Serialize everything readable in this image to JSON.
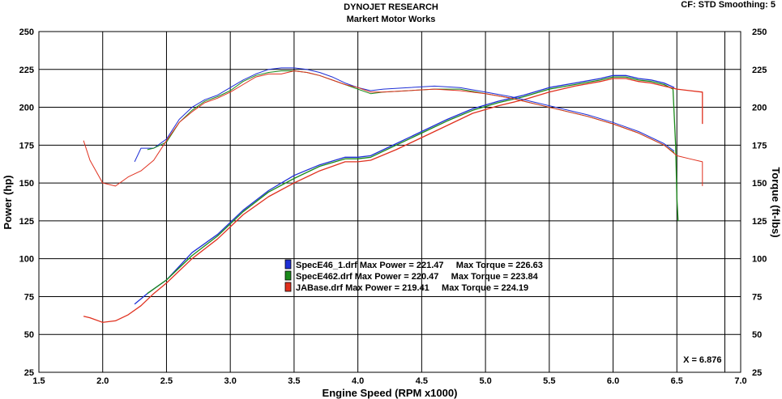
{
  "header": {
    "title": "DYNOJET RESEARCH",
    "subtitle": "Markert Motor Works",
    "cf_info": "CF: STD  Smoothing: 5"
  },
  "cursor": {
    "x_readout": "X = 6.876",
    "x_value": 6.876
  },
  "chart_data": {
    "type": "line",
    "xlabel": "Engine Speed (RPM x1000)",
    "ylabel": "Power (hp)",
    "y2label": "Torque (ft-lbs)",
    "xlim": [
      1.5,
      7.0
    ],
    "ylim": [
      25,
      250
    ],
    "y2lim": [
      25,
      250
    ],
    "xticks": [
      "1.5",
      "2.0",
      "2.5",
      "3.0",
      "3.5",
      "4.0",
      "4.5",
      "5.0",
      "5.5",
      "6.0",
      "6.5",
      "7.0"
    ],
    "yticks": [
      "25",
      "50",
      "75",
      "100",
      "125",
      "150",
      "175",
      "200",
      "225",
      "250"
    ],
    "grid": true,
    "legend": [
      {
        "text": "SpecE46_1.drf Max Power = 221.47     Max Torque = 226.63",
        "color": "#1e2fd6"
      },
      {
        "text": "SpecE462.drf Max Power = 220.47     Max Torque = 223.84",
        "color": "#1a8a1a"
      },
      {
        "text": "JABase.drf Max Power = 219.41     Max Torque = 224.19",
        "color": "#e0301e"
      }
    ],
    "series": [
      {
        "name": "SpecE46_1.drf",
        "measure": "power",
        "color": "#1e2fd6",
        "x": [
          2.25,
          2.35,
          2.5,
          2.7,
          2.9,
          3.1,
          3.3,
          3.5,
          3.7,
          3.9,
          4.0,
          4.1,
          4.3,
          4.5,
          4.7,
          4.9,
          5.1,
          5.3,
          5.5,
          5.7,
          5.9,
          6.0,
          6.1,
          6.2,
          6.3,
          6.4,
          6.48
        ],
        "y": [
          70,
          77,
          86,
          104,
          116,
          132,
          145,
          155,
          162,
          167,
          167,
          168,
          176,
          184,
          192,
          199,
          204,
          208,
          213,
          216,
          219,
          221,
          221,
          219,
          218,
          216,
          213
        ]
      },
      {
        "name": "SpecE462.drf",
        "measure": "power",
        "color": "#1a8a1a",
        "x": [
          2.35,
          2.5,
          2.7,
          2.9,
          3.1,
          3.3,
          3.5,
          3.7,
          3.9,
          4.0,
          4.1,
          4.3,
          4.5,
          4.7,
          4.9,
          5.1,
          5.3,
          5.5,
          5.7,
          5.9,
          6.0,
          6.1,
          6.2,
          6.3,
          6.4,
          6.47,
          6.49,
          6.5,
          6.51
        ],
        "y": [
          77,
          86,
          102,
          115,
          131,
          144,
          153,
          161,
          166,
          166,
          167,
          175,
          183,
          191,
          198,
          203,
          207,
          212,
          215,
          218,
          220,
          220,
          218,
          217,
          215,
          212,
          175,
          140,
          125
        ]
      },
      {
        "name": "JABase.drf",
        "measure": "power",
        "color": "#e0301e",
        "x": [
          1.85,
          1.9,
          2.0,
          2.1,
          2.2,
          2.3,
          2.4,
          2.5,
          2.7,
          2.9,
          3.1,
          3.3,
          3.5,
          3.7,
          3.9,
          4.0,
          4.1,
          4.3,
          4.5,
          4.7,
          4.9,
          5.1,
          5.3,
          5.5,
          5.7,
          5.9,
          6.0,
          6.1,
          6.2,
          6.3,
          6.4,
          6.5,
          6.6,
          6.7,
          6.7
        ],
        "y": [
          62,
          61,
          58,
          59,
          63,
          69,
          77,
          84,
          100,
          113,
          129,
          141,
          150,
          158,
          164,
          164,
          165,
          172,
          180,
          188,
          196,
          201,
          205,
          210,
          214,
          217,
          219,
          219,
          217,
          216,
          214,
          212,
          211,
          210,
          189
        ]
      },
      {
        "name": "SpecE46_1.drf",
        "measure": "torque",
        "color": "#1e2fd6",
        "x": [
          2.25,
          2.3,
          2.4,
          2.5,
          2.6,
          2.7,
          2.8,
          2.9,
          3.0,
          3.1,
          3.2,
          3.3,
          3.4,
          3.5,
          3.6,
          3.7,
          3.8,
          3.9,
          4.0,
          4.1,
          4.2,
          4.4,
          4.6,
          4.8,
          5.0,
          5.2,
          5.4,
          5.6,
          5.8,
          6.0,
          6.2,
          6.4,
          6.48
        ],
        "y": [
          164,
          173,
          173,
          179,
          192,
          200,
          205,
          208,
          213,
          218,
          222,
          225,
          226,
          226,
          225,
          223,
          220,
          216,
          213,
          211,
          212,
          213,
          214,
          213,
          210,
          207,
          203,
          199,
          195,
          190,
          184,
          176,
          171
        ]
      },
      {
        "name": "SpecE462.drf",
        "measure": "torque",
        "color": "#1a8a1a",
        "x": [
          2.35,
          2.4,
          2.5,
          2.6,
          2.7,
          2.8,
          2.9,
          3.0,
          3.1,
          3.2,
          3.3,
          3.4,
          3.5,
          3.6,
          3.7,
          3.8,
          3.9,
          4.0,
          4.1,
          4.2,
          4.4,
          4.6,
          4.8,
          5.0,
          5.2,
          5.4,
          5.6,
          5.8,
          6.0,
          6.2,
          6.4,
          6.48
        ],
        "y": [
          172,
          173,
          177,
          190,
          198,
          204,
          207,
          211,
          217,
          221,
          223,
          224,
          224,
          223,
          221,
          218,
          215,
          212,
          209,
          210,
          211,
          212,
          212,
          209,
          206,
          202,
          198,
          194,
          189,
          183,
          175,
          170
        ]
      },
      {
        "name": "JABase.drf",
        "measure": "torque",
        "color": "#e0301e",
        "x": [
          1.85,
          1.9,
          2.0,
          2.1,
          2.2,
          2.3,
          2.4,
          2.5,
          2.6,
          2.7,
          2.8,
          2.9,
          3.0,
          3.1,
          3.2,
          3.3,
          3.4,
          3.5,
          3.6,
          3.7,
          3.8,
          3.9,
          4.0,
          4.1,
          4.2,
          4.4,
          4.6,
          4.8,
          5.0,
          5.2,
          5.4,
          5.6,
          5.8,
          6.0,
          6.2,
          6.4,
          6.5,
          6.6,
          6.7,
          6.7
        ],
        "y": [
          178,
          165,
          150,
          148,
          154,
          158,
          165,
          178,
          190,
          197,
          203,
          206,
          210,
          215,
          220,
          222,
          222,
          224,
          223,
          221,
          218,
          215,
          213,
          210,
          210,
          211,
          212,
          211,
          209,
          206,
          202,
          198,
          194,
          189,
          183,
          175,
          168,
          166,
          164,
          148
        ]
      }
    ]
  }
}
